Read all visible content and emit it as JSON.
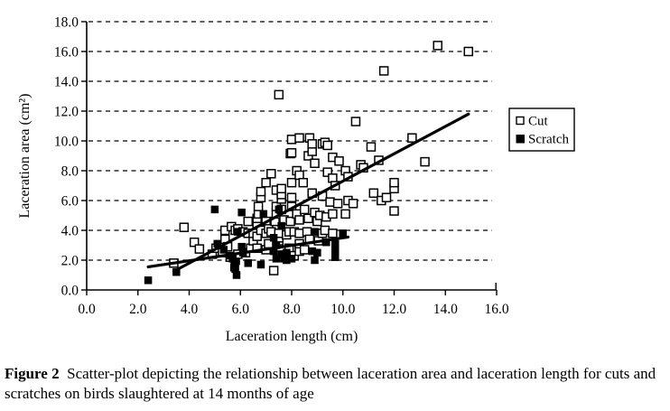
{
  "figure": {
    "label": "Figure 2",
    "caption": "Scatter-plot depicting the relationship between laceration area and laceration length for cuts and scratches on  birds slaughtered at 14 months of age"
  },
  "chart_data": {
    "type": "scatter",
    "title": "",
    "xlabel": "Laceration length (cm)",
    "ylabel": "Laceration area (cm²)",
    "xlim": [
      0,
      16
    ],
    "ylim": [
      0,
      18
    ],
    "xticks": [
      "0.0",
      "2.0",
      "4.0",
      "6.0",
      "8.0",
      "10.0",
      "12.0",
      "14.0",
      "16.0"
    ],
    "yticks": [
      "0.0",
      "2.0",
      "4.0",
      "6.0",
      "8.0",
      "10.0",
      "12.0",
      "14.0",
      "16.0",
      "18.0"
    ],
    "grid": "horizontal-dashed",
    "legend": {
      "position": "right",
      "entries": [
        {
          "label": "Cut",
          "marker": "open-square"
        },
        {
          "label": "Scratch",
          "marker": "filled-square"
        }
      ]
    },
    "colors": {
      "foreground": "#000000",
      "background": "#ffffff"
    },
    "series": [
      {
        "name": "Cut",
        "marker": "open-square",
        "trendline": {
          "x1": 3.4,
          "y1": 1.25,
          "x2": 14.9,
          "y2": 11.8
        },
        "points": [
          [
            3.4,
            1.8
          ],
          [
            3.8,
            4.2
          ],
          [
            4.2,
            3.2
          ],
          [
            4.4,
            2.75
          ],
          [
            4.9,
            2.4
          ],
          [
            5.05,
            2.8
          ],
          [
            5.3,
            2.5
          ],
          [
            5.4,
            3.4
          ],
          [
            5.4,
            4.0
          ],
          [
            5.5,
            2.9
          ],
          [
            5.6,
            2.2
          ],
          [
            5.65,
            4.25
          ],
          [
            5.8,
            2.0
          ],
          [
            5.8,
            4.0
          ],
          [
            5.9,
            2.4
          ],
          [
            5.9,
            4.1
          ],
          [
            6.1,
            3.9
          ],
          [
            6.2,
            2.5
          ],
          [
            6.3,
            3.8
          ],
          [
            6.3,
            4.6
          ],
          [
            6.4,
            2.8
          ],
          [
            6.5,
            3.3
          ],
          [
            6.5,
            3.8
          ],
          [
            6.65,
            2.8
          ],
          [
            6.65,
            3.6
          ],
          [
            6.65,
            4.4
          ],
          [
            6.65,
            4.8
          ],
          [
            6.7,
            5.1
          ],
          [
            6.7,
            5.6
          ],
          [
            6.8,
            4.0
          ],
          [
            6.8,
            6.2
          ],
          [
            6.8,
            6.6
          ],
          [
            7.0,
            2.7
          ],
          [
            7.0,
            3.8
          ],
          [
            7.0,
            4.6
          ],
          [
            7.0,
            7.2
          ],
          [
            7.1,
            3.1
          ],
          [
            7.1,
            4.1
          ],
          [
            7.2,
            3.9
          ],
          [
            7.2,
            7.8
          ],
          [
            7.3,
            1.3
          ],
          [
            7.35,
            4.6
          ],
          [
            7.4,
            5.1
          ],
          [
            7.4,
            5.6
          ],
          [
            7.4,
            6.7
          ],
          [
            7.5,
            3.3
          ],
          [
            7.5,
            3.5
          ],
          [
            7.5,
            3.8
          ],
          [
            7.5,
            13.1
          ],
          [
            7.6,
            5.4
          ],
          [
            7.6,
            6.1
          ],
          [
            7.6,
            6.4
          ],
          [
            7.6,
            6.8
          ],
          [
            7.7,
            4.7
          ],
          [
            7.8,
            3.7
          ],
          [
            7.9,
            2.8
          ],
          [
            7.9,
            3.9
          ],
          [
            7.95,
            9.15
          ],
          [
            7.95,
            4.6
          ],
          [
            8.0,
            5.6
          ],
          [
            8.0,
            6.2
          ],
          [
            8.0,
            7.2
          ],
          [
            8.0,
            9.2
          ],
          [
            8.0,
            10.1
          ],
          [
            8.1,
            2.3
          ],
          [
            8.1,
            3.9
          ],
          [
            8.2,
            5.1
          ],
          [
            8.2,
            8.0
          ],
          [
            8.3,
            2.6
          ],
          [
            8.3,
            3.1
          ],
          [
            8.3,
            3.8
          ],
          [
            8.3,
            4.7
          ],
          [
            8.3,
            7.7
          ],
          [
            8.3,
            10.2
          ],
          [
            8.45,
            7.2
          ],
          [
            8.5,
            2.7
          ],
          [
            8.5,
            5.4
          ],
          [
            8.6,
            3.9
          ],
          [
            8.65,
            9.0
          ],
          [
            8.65,
            4.8
          ],
          [
            8.7,
            3.4
          ],
          [
            8.7,
            10.2
          ],
          [
            8.8,
            6.5
          ],
          [
            8.8,
            9.3
          ],
          [
            8.8,
            9.8
          ],
          [
            8.9,
            5.2
          ],
          [
            8.9,
            8.5
          ],
          [
            9.0,
            4.6
          ],
          [
            9.05,
            3.3
          ],
          [
            9.1,
            5.0
          ],
          [
            9.2,
            3.8
          ],
          [
            9.2,
            6.3
          ],
          [
            9.2,
            9.8
          ],
          [
            9.3,
            4.0
          ],
          [
            9.3,
            9.9
          ],
          [
            9.35,
            4.9
          ],
          [
            9.4,
            7.9
          ],
          [
            9.4,
            9.7
          ],
          [
            9.5,
            5.9
          ],
          [
            9.6,
            3.8
          ],
          [
            9.6,
            5.1
          ],
          [
            9.6,
            7.5
          ],
          [
            9.6,
            8.9
          ],
          [
            9.7,
            7.0
          ],
          [
            9.8,
            5.8
          ],
          [
            9.85,
            8.65
          ],
          [
            10.1,
            5.1
          ],
          [
            10.1,
            8.0
          ],
          [
            10.2,
            6.0
          ],
          [
            10.2,
            7.6
          ],
          [
            10.4,
            5.8
          ],
          [
            10.5,
            11.3
          ],
          [
            10.7,
            8.4
          ],
          [
            10.8,
            8.2
          ],
          [
            11.1,
            9.6
          ],
          [
            11.2,
            6.5
          ],
          [
            11.4,
            8.7
          ],
          [
            11.5,
            6.0
          ],
          [
            11.6,
            14.7
          ],
          [
            11.7,
            6.2
          ],
          [
            12.0,
            5.3
          ],
          [
            12.0,
            6.8
          ],
          [
            12.0,
            7.2
          ],
          [
            12.7,
            10.2
          ],
          [
            13.2,
            8.6
          ],
          [
            13.7,
            16.4
          ],
          [
            14.9,
            16.0
          ]
        ]
      },
      {
        "name": "Scratch",
        "marker": "filled-square",
        "trendline": {
          "x1": 2.4,
          "y1": 1.55,
          "x2": 10.2,
          "y2": 3.55
        },
        "points": [
          [
            2.4,
            0.65
          ],
          [
            3.5,
            1.2
          ],
          [
            5.0,
            5.4
          ],
          [
            5.1,
            3.1
          ],
          [
            5.35,
            2.7
          ],
          [
            5.6,
            2.3
          ],
          [
            5.7,
            2.1
          ],
          [
            5.75,
            1.5
          ],
          [
            5.8,
            1.4
          ],
          [
            5.85,
            1.0
          ],
          [
            5.8,
            1.9
          ],
          [
            5.9,
            3.9
          ],
          [
            6.05,
            2.9
          ],
          [
            6.1,
            2.5
          ],
          [
            6.05,
            5.2
          ],
          [
            6.3,
            1.8
          ],
          [
            6.8,
            1.7
          ],
          [
            6.9,
            5.1
          ],
          [
            7.3,
            2.6
          ],
          [
            7.3,
            3.5
          ],
          [
            7.4,
            2.1
          ],
          [
            7.4,
            3.0
          ],
          [
            7.5,
            5.4
          ],
          [
            7.6,
            2.4
          ],
          [
            7.6,
            4.3
          ],
          [
            7.7,
            2.1
          ],
          [
            7.8,
            2.5
          ],
          [
            7.8,
            2.0
          ],
          [
            8.0,
            2.1
          ],
          [
            8.8,
            2.6
          ],
          [
            8.9,
            2.0
          ],
          [
            8.9,
            3.9
          ],
          [
            9.0,
            2.5
          ],
          [
            9.35,
            3.2
          ],
          [
            9.7,
            2.2
          ],
          [
            9.7,
            2.7
          ],
          [
            9.7,
            3.1
          ],
          [
            10.0,
            3.8
          ]
        ]
      }
    ]
  }
}
